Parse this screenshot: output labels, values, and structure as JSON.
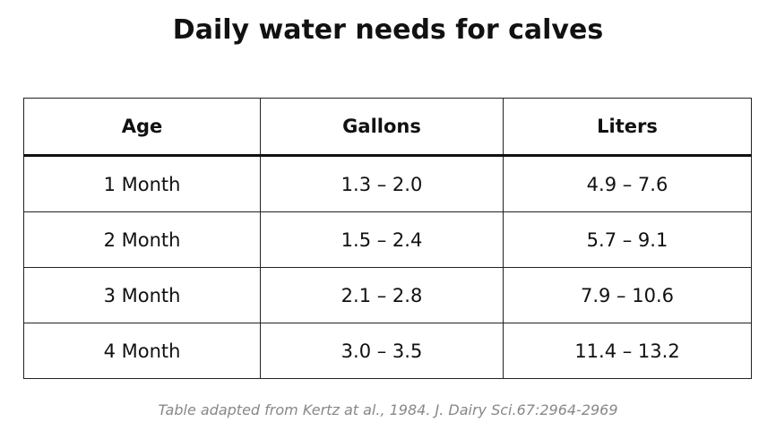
{
  "title": "Daily water needs for calves",
  "table": {
    "header": [
      "Age",
      "Gallons",
      "Liters"
    ],
    "rows": [
      [
        "1 Month",
        "1.3 – 2.0",
        "4.9 – 7.6"
      ],
      [
        "2 Month",
        "1.5 – 2.4",
        "5.7 – 9.1"
      ],
      [
        "3 Month",
        "2.1 – 2.8",
        "7.9 – 10.6"
      ],
      [
        "4 Month",
        "3.0 – 3.5",
        "11.4 – 13.2"
      ]
    ]
  },
  "caption": "Table adapted from Kertz at al., 1984. J. Dairy Sci.67:2964-2969"
}
